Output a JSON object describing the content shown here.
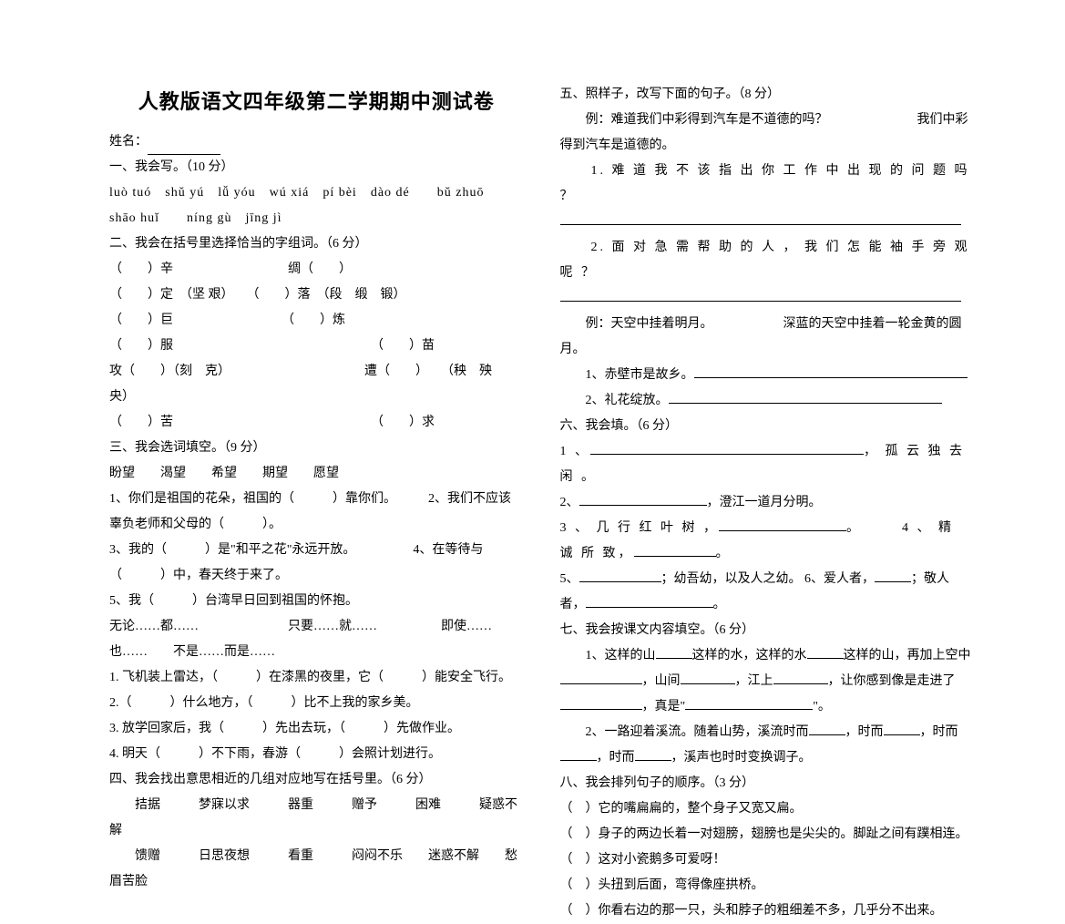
{
  "title": "人教版语文四年级第二学期期中测试卷",
  "nameLabel": "姓名：",
  "left": {
    "s1": "一、我会写。（10 分）",
    "pinyin1": "luò tuó　shǔ yú　lǚ yóu　wú xiá　pí bèi　dào dé　　bǔ zhuō",
    "pinyin2": "shāo huǐ　　níng gù　jīng jì",
    "s2": "二、我会在括号里选择恰当的字组词。（6 分）",
    "s2l1": "（　　）辛　　　　　　　　　绸（　　）",
    "s2l2": "（　　）定　（坚 艰）　　（　　）落　（段　缎　锻）",
    "s2l3": "（　　）巨　　　　　　　　　（　　）炼",
    "s2l4": "（　　）服　　　　　　　　　　　　　　　　（　　）苗",
    "s2l5": "攻（　　）（刻　克）　　　　　　　　　　　遭（　　）　　（秧　殃　央）",
    "s2l6": "（　　）苦　　　　　　　　　　　　　　　　（　　）求",
    "s3": "三、我会选词填空。（9 分）",
    "s3words": "盼望　　渴望　　希望　　期望　　愿望",
    "s3l1": "1、你们是祖国的花朵，祖国的（　　　）靠你们。　　　2、我们不应该辜负老师和父母的（　　　）。",
    "s3l3": "3、我的（　　　）是\"和平之花\"永远开放。　　　　　4、在等待与（　　　）中，春天终于来了。",
    "s3l5": "5、我（　　　）台湾早日回到祖国的怀抱。",
    "s3conn": "无论……都……　　　　　　　只要……就……　　　　　即使……也……　　不是……而是……",
    "s3c1": "1. 飞机装上雷达，（　　　）在漆黑的夜里，它（　　　）能安全飞行。",
    "s3c2": "2.（　　　）什么地方，（　　　）比不上我的家乡美。",
    "s3c3": "3. 放学回家后，我（　　　）先出去玩，（　　　）先做作业。",
    "s3c4": "4. 明天（　　　）不下雨，春游（　　　）会照计划进行。",
    "s4": "四、我会找出意思相近的几组对应地写在括号里。（6 分）",
    "s4l1": "　　拮据　　　梦寐以求　　　器重　　　赠予　　　困难　　　疑惑不解",
    "s4l2": "　　馈赠　　　日思夜想　　　看重　　　闷闷不乐　　迷惑不解　　愁眉苦脸"
  },
  "right": {
    "s5": "五、照样子，改写下面的句子。（8 分）",
    "s5ex": "　　例：难道我们中彩得到汽车是不道德的吗？　　　　　　　我们中彩得到汽车是道德的。",
    "s5q1": "　　1.  难 道 我 不 该 指 出 你 工 作 中 出 现 的 问 题 吗 ？",
    "s5q2": "　　2.  面 对 急 需 帮 助 的 人 ， 我 们 怎 能 袖 手 旁 观 呢 ？",
    "s5ex2": "　　例：天空中挂着明月。　　　　　　深蓝的天空中挂着一轮金黄的圆月。",
    "s5q3a": "　　1、赤壁市是故乡。",
    "s5q4a": "　　2、礼花绽放。",
    "s6": "六、我会填。（6 分）",
    "s6l1a": "1 、",
    "s6l1b": "， 孤 云 独 去 闲 。",
    "s6l2a": "2、",
    "s6l2b": "，澄江一道月分明。",
    "s6l3a": "3 、 几 行 红 叶 树 ，",
    "s6l3b": "。　　　4 、 精 诚 所 致，",
    "s6l3c": "。",
    "s6l5a": "5、",
    "s6l5b": "；幼吾幼，以及人之幼。 6、爱人者，",
    "s6l5c": "；敬人者，",
    "s6l5d": "。",
    "s7": "七、我会按课文内容填空。（6 分）",
    "s7l1a": "　　1、这样的山",
    "s7l1b": "这样的水，这样的水",
    "s7l1c": "这样的山，再加上空中",
    "s7l1d": "，山间",
    "s7l1e": "，江上",
    "s7l1f": "，让你感到像是走进了",
    "s7l1g": "，真是\"",
    "s7l1h": "\"。",
    "s7l2a": "　　2、一路迎着溪流。随着山势，溪流时而",
    "s7l2b": "，时而",
    "s7l2c": "，时而",
    "s7l2d": "，时而",
    "s7l2e": "，溪声也时时变换调子。",
    "s8": "八、我会排列句子的顺序。（3 分）",
    "s8l1": "（　）它的嘴扁扁的，整个身子又宽又扁。",
    "s8l2": "（　）身子的两边长着一对翅膀，翅膀也是尖尖的。脚趾之间有蹼相连。",
    "s8l3": "（　）这对小瓷鹅多可爱呀！",
    "s8l4": "（　）头扭到后面，弯得像座拱桥。",
    "s8l5": "（　）你看右边的那一只，头和脖子的粗细差不多，几乎分不出来。"
  }
}
